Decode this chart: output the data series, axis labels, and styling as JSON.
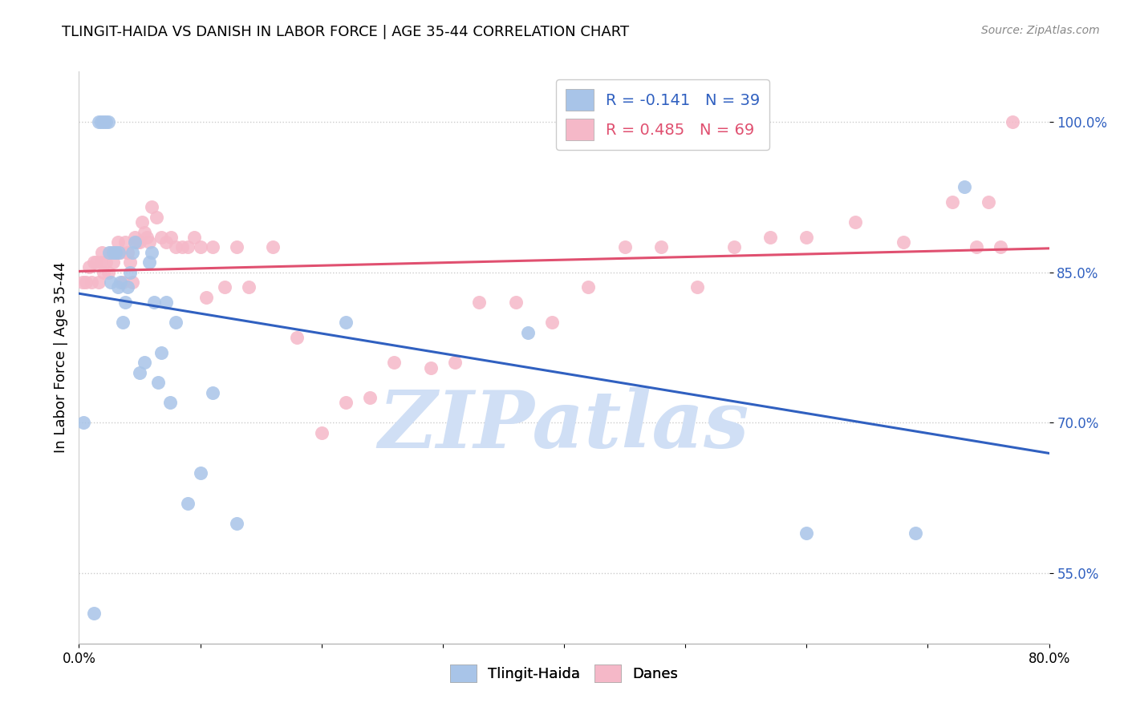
{
  "title": "TLINGIT-HAIDA VS DANISH IN LABOR FORCE | AGE 35-44 CORRELATION CHART",
  "source_text": "Source: ZipAtlas.com",
  "ylabel": "In Labor Force | Age 35-44",
  "xmin": 0.0,
  "xmax": 0.8,
  "ymin": 0.48,
  "ymax": 1.05,
  "yticks": [
    0.55,
    0.7,
    0.85,
    1.0
  ],
  "ytick_labels": [
    "55.0%",
    "70.0%",
    "85.0%",
    "100.0%"
  ],
  "xticks": [
    0.0,
    0.1,
    0.2,
    0.3,
    0.4,
    0.5,
    0.6,
    0.7,
    0.8
  ],
  "xtick_labels": [
    "0.0%",
    "",
    "",
    "",
    "",
    "",
    "",
    "",
    "80.0%"
  ],
  "legend_blue_label": "R = -0.141   N = 39",
  "legend_pink_label": "R = 0.485   N = 69",
  "tlingit_color": "#a8c4e8",
  "danes_color": "#f5b8c8",
  "trendline_blue_color": "#3060c0",
  "trendline_pink_color": "#e05070",
  "watermark_color": "#d0dff5",
  "watermark_text": "ZIPatlas",
  "blue_R": -0.141,
  "pink_R": 0.485,
  "blue_scatter_x": [
    0.004,
    0.012,
    0.016,
    0.018,
    0.02,
    0.022,
    0.024,
    0.025,
    0.026,
    0.028,
    0.03,
    0.032,
    0.033,
    0.034,
    0.036,
    0.038,
    0.04,
    0.042,
    0.044,
    0.046,
    0.05,
    0.054,
    0.058,
    0.06,
    0.062,
    0.065,
    0.068,
    0.072,
    0.075,
    0.08,
    0.09,
    0.1,
    0.11,
    0.13,
    0.22,
    0.37,
    0.6,
    0.69,
    0.73
  ],
  "blue_scatter_y": [
    0.7,
    0.51,
    1.0,
    1.0,
    1.0,
    1.0,
    1.0,
    0.87,
    0.84,
    0.87,
    0.87,
    0.835,
    0.87,
    0.84,
    0.8,
    0.82,
    0.835,
    0.85,
    0.87,
    0.88,
    0.75,
    0.76,
    0.86,
    0.87,
    0.82,
    0.74,
    0.77,
    0.82,
    0.72,
    0.8,
    0.62,
    0.65,
    0.73,
    0.6,
    0.8,
    0.79,
    0.59,
    0.59,
    0.935
  ],
  "pink_scatter_x": [
    0.003,
    0.006,
    0.008,
    0.01,
    0.012,
    0.014,
    0.016,
    0.018,
    0.019,
    0.02,
    0.022,
    0.024,
    0.026,
    0.028,
    0.03,
    0.032,
    0.034,
    0.036,
    0.038,
    0.04,
    0.042,
    0.044,
    0.046,
    0.048,
    0.05,
    0.052,
    0.054,
    0.056,
    0.058,
    0.06,
    0.064,
    0.068,
    0.072,
    0.076,
    0.08,
    0.085,
    0.09,
    0.095,
    0.1,
    0.105,
    0.11,
    0.12,
    0.13,
    0.14,
    0.16,
    0.18,
    0.2,
    0.22,
    0.24,
    0.26,
    0.29,
    0.31,
    0.33,
    0.36,
    0.39,
    0.42,
    0.45,
    0.48,
    0.51,
    0.54,
    0.57,
    0.6,
    0.64,
    0.68,
    0.72,
    0.74,
    0.75,
    0.76,
    0.77
  ],
  "pink_scatter_y": [
    0.84,
    0.84,
    0.855,
    0.84,
    0.86,
    0.86,
    0.84,
    0.86,
    0.87,
    0.85,
    0.86,
    0.85,
    0.87,
    0.86,
    0.87,
    0.88,
    0.87,
    0.84,
    0.88,
    0.87,
    0.86,
    0.84,
    0.885,
    0.88,
    0.88,
    0.9,
    0.89,
    0.885,
    0.88,
    0.915,
    0.905,
    0.885,
    0.88,
    0.885,
    0.875,
    0.875,
    0.875,
    0.885,
    0.875,
    0.825,
    0.875,
    0.835,
    0.875,
    0.835,
    0.875,
    0.785,
    0.69,
    0.72,
    0.725,
    0.76,
    0.755,
    0.76,
    0.82,
    0.82,
    0.8,
    0.835,
    0.875,
    0.875,
    0.835,
    0.875,
    0.885,
    0.885,
    0.9,
    0.88,
    0.92,
    0.875,
    0.92,
    0.875,
    1.0
  ]
}
